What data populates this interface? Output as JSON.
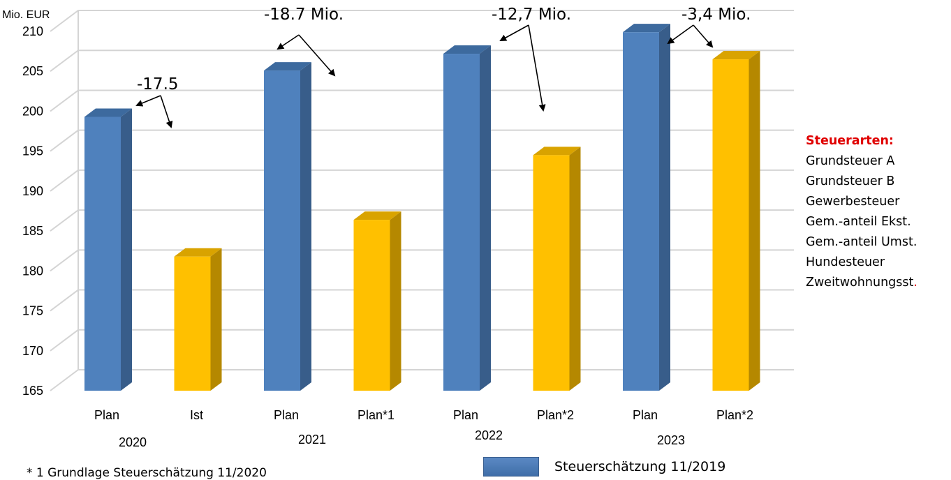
{
  "chart_data": {
    "type": "bar",
    "unit_label": "Mio. EUR",
    "ylim": [
      165,
      210
    ],
    "yticks": [
      165,
      170,
      175,
      180,
      185,
      190,
      195,
      200,
      205,
      210
    ],
    "grid": true,
    "groups": [
      {
        "year": "2020",
        "bars": [
          {
            "label": "Plan",
            "value": 199.3,
            "series": "blue"
          },
          {
            "label": "Ist",
            "value": 181.8,
            "series": "yellow"
          }
        ]
      },
      {
        "year": "2021",
        "bars": [
          {
            "label": "Plan",
            "value": 205.1,
            "series": "blue"
          },
          {
            "label": "Plan*1",
            "value": 186.4,
            "series": "yellow"
          }
        ]
      },
      {
        "year": "2022",
        "bars": [
          {
            "label": "Plan",
            "value": 207.2,
            "series": "blue"
          },
          {
            "label": "Plan*2",
            "value": 194.5,
            "series": "yellow"
          }
        ]
      },
      {
        "year": "2023",
        "bars": [
          {
            "label": "Plan",
            "value": 209.9,
            "series": "blue"
          },
          {
            "label": "Plan*2",
            "value": 206.5,
            "series": "yellow"
          }
        ]
      }
    ],
    "annotations": [
      "-17.5",
      "-18.7 Mio.",
      "-12,7 Mio.",
      "-3,4 Mio."
    ],
    "colors": {
      "blue_front": "#4f81bd",
      "blue_side": "#385d8a",
      "blue_top": "#3d6a9e",
      "yellow_front": "#ffc000",
      "yellow_side": "#b58800",
      "yellow_top": "#d9a300",
      "grid": "#d4d4d4"
    },
    "legend": [
      {
        "label": "Steuerschätzung 11/2019",
        "color": "#4f81bd"
      }
    ]
  },
  "side_panel": {
    "title": "Steuerarten:",
    "items": [
      "Grundsteuer A",
      "Grundsteuer B",
      "Gewerbesteuer",
      "Gem.-anteil Ekst.",
      "Gem.-anteil Umst.",
      "Hundesteuer",
      "Zweitwohnungsst"
    ],
    "trailing_dot": "."
  },
  "footnote": "* 1 Grundlage Steuerschätzung 11/2020"
}
